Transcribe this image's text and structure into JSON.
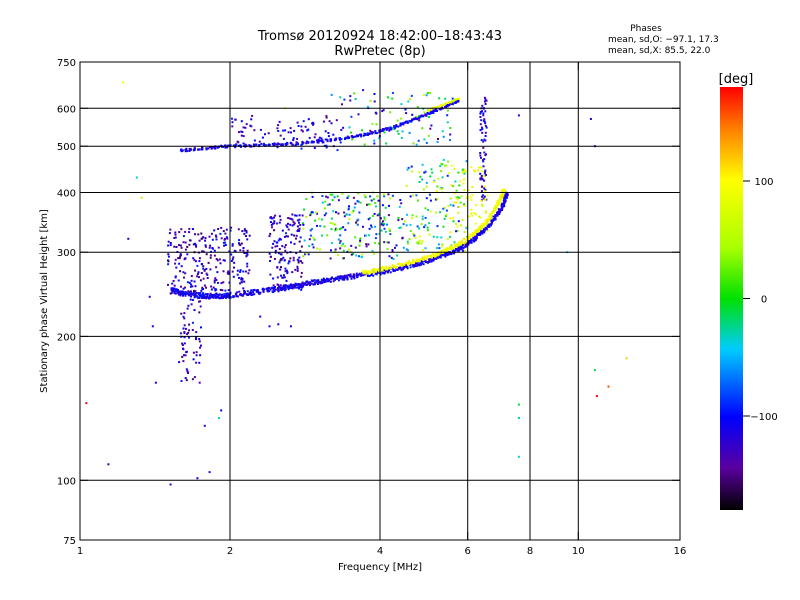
{
  "chart_data": {
    "type": "scatter",
    "title": "Tromsø 20120924 18:42:00–18:43:43",
    "subtitle": "RwPretec (8p)",
    "xlabel": "Frequency [MHz]",
    "ylabel": "Stationary phase Virtual Height [km]",
    "x_scale": "log",
    "y_scale": "log",
    "xlim": [
      1,
      16
    ],
    "ylim": [
      75,
      750
    ],
    "x_ticks": [
      1,
      2,
      4,
      6,
      8,
      10,
      16
    ],
    "x_tick_labels": [
      "1",
      "2",
      "4",
      "6",
      "8",
      "10",
      "16"
    ],
    "y_ticks": [
      75,
      100,
      200,
      300,
      400,
      500,
      600,
      750
    ],
    "y_tick_labels": [
      "75",
      "100",
      "200",
      "300",
      "400",
      "500",
      "600",
      "750"
    ],
    "grid": true,
    "grid_lines_x": [
      2,
      4,
      6,
      8,
      10
    ],
    "grid_lines_y": [
      100,
      200,
      300,
      400,
      500,
      600
    ],
    "stats": {
      "header": "Phases",
      "line_O": "mean, sd,O:  −97.1, 17.3",
      "line_X": "mean, sd,X:  85.5, 22.0"
    },
    "colorbar": {
      "label": "[deg]",
      "range": [
        -180,
        180
      ],
      "tick_values": [
        100,
        0,
        -100
      ],
      "tick_labels": [
        "100",
        "0",
        "−100"
      ]
    },
    "traces": [
      {
        "kind": "o_trace",
        "phase": -110,
        "spread": 6,
        "count": 6,
        "points": [
          [
            1.53,
            250
          ],
          [
            1.6,
            246
          ],
          [
            1.7,
            244
          ],
          [
            1.8,
            243
          ],
          [
            1.9,
            243
          ],
          [
            2.0,
            244
          ],
          [
            2.2,
            247
          ],
          [
            2.4,
            250
          ],
          [
            2.6,
            253
          ],
          [
            2.8,
            257
          ],
          [
            3.0,
            260
          ],
          [
            3.3,
            264
          ],
          [
            3.6,
            268
          ],
          [
            4.0,
            272
          ],
          [
            4.4,
            278
          ],
          [
            4.8,
            284
          ],
          [
            5.2,
            292
          ],
          [
            5.6,
            300
          ],
          [
            6.0,
            312
          ],
          [
            6.3,
            325
          ],
          [
            6.6,
            340
          ],
          [
            6.9,
            360
          ],
          [
            7.1,
            380
          ],
          [
            7.2,
            400
          ]
        ]
      },
      {
        "kind": "x_trace",
        "phase": 95,
        "spread": 5,
        "count": 5,
        "points": [
          [
            3.7,
            272
          ],
          [
            4.0,
            276
          ],
          [
            4.4,
            282
          ],
          [
            4.8,
            289
          ],
          [
            5.2,
            297
          ],
          [
            5.6,
            307
          ],
          [
            6.0,
            320
          ],
          [
            6.3,
            334
          ],
          [
            6.6,
            350
          ],
          [
            6.8,
            370
          ],
          [
            7.0,
            390
          ],
          [
            7.1,
            410
          ]
        ]
      },
      {
        "kind": "upper_trace",
        "phase": -110,
        "spread": 6,
        "count": 5,
        "points": [
          [
            1.6,
            490
          ],
          [
            1.8,
            495
          ],
          [
            2.0,
            500
          ],
          [
            2.3,
            503
          ],
          [
            2.6,
            505
          ],
          [
            3.0,
            510
          ],
          [
            3.4,
            520
          ],
          [
            3.8,
            530
          ],
          [
            4.2,
            545
          ],
          [
            4.6,
            565
          ],
          [
            5.0,
            585
          ],
          [
            5.4,
            605
          ],
          [
            5.8,
            625
          ]
        ]
      },
      {
        "kind": "upper_x",
        "phase": 80,
        "spread": 4,
        "count": 3,
        "points": [
          [
            5.0,
            595
          ],
          [
            5.4,
            612
          ],
          [
            5.8,
            632
          ]
        ]
      }
    ],
    "clouds": [
      {
        "fmin": 1.5,
        "fmax": 2.2,
        "hmin": 245,
        "hmax": 340,
        "n": 260,
        "pmin": -160,
        "pmax": -90
      },
      {
        "fmin": 2.4,
        "fmax": 2.8,
        "hmin": 250,
        "hmax": 360,
        "n": 150,
        "pmin": -160,
        "pmax": -90
      },
      {
        "fmin": 2.8,
        "fmax": 4.5,
        "hmin": 290,
        "hmax": 400,
        "n": 220,
        "pmin": -160,
        "pmax": 60
      },
      {
        "fmin": 4.5,
        "fmax": 6.0,
        "hmin": 300,
        "hmax": 470,
        "n": 150,
        "pmin": -110,
        "pmax": 100
      },
      {
        "fmin": 1.58,
        "fmax": 1.75,
        "hmin": 160,
        "hmax": 250,
        "n": 70,
        "pmin": -160,
        "pmax": -90
      },
      {
        "fmin": 2.0,
        "fmax": 3.4,
        "hmin": 490,
        "hmax": 580,
        "n": 90,
        "pmin": -150,
        "pmax": -90
      },
      {
        "fmin": 3.3,
        "fmax": 5.6,
        "hmin": 500,
        "hmax": 650,
        "n": 90,
        "pmin": -150,
        "pmax": 50
      },
      {
        "fmin": 6.35,
        "fmax": 6.55,
        "hmin": 380,
        "hmax": 640,
        "n": 70,
        "pmin": -150,
        "pmax": -90
      },
      {
        "fmin": 5.5,
        "fmax": 6.6,
        "hmin": 330,
        "hmax": 460,
        "n": 60,
        "pmin": 70,
        "pmax": 110
      }
    ],
    "scattered_points": [
      [
        1.03,
        145,
        180
      ],
      [
        1.22,
        680,
        100
      ],
      [
        1.25,
        320,
        -110
      ],
      [
        1.14,
        108,
        -120
      ],
      [
        1.3,
        430,
        -30
      ],
      [
        1.33,
        390,
        60
      ],
      [
        1.38,
        242,
        -120
      ],
      [
        1.4,
        210,
        -110
      ],
      [
        1.52,
        98,
        -120
      ],
      [
        1.42,
        160,
        -110
      ],
      [
        1.72,
        101,
        -120
      ],
      [
        1.82,
        104,
        -120
      ],
      [
        1.78,
        130,
        -120
      ],
      [
        1.9,
        135,
        -30
      ],
      [
        1.92,
        140,
        -100
      ],
      [
        2.3,
        220,
        -110
      ],
      [
        2.4,
        210,
        -110
      ],
      [
        2.5,
        212,
        -110
      ],
      [
        2.65,
        210,
        -110
      ],
      [
        2.58,
        600,
        80
      ],
      [
        7.6,
        580,
        -120
      ],
      [
        9.5,
        300,
        -40
      ],
      [
        10.6,
        570,
        -120
      ],
      [
        10.8,
        500,
        -110
      ],
      [
        10.8,
        170,
        -10
      ],
      [
        11.5,
        157,
        160
      ],
      [
        10.9,
        150,
        180
      ],
      [
        12.5,
        180,
        120
      ],
      [
        7.6,
        144,
        -10
      ],
      [
        7.6,
        135,
        -20
      ],
      [
        7.6,
        112,
        -40
      ],
      [
        3.2,
        640,
        -60
      ],
      [
        3.7,
        655,
        -120
      ],
      [
        4.9,
        640,
        70
      ]
    ]
  }
}
